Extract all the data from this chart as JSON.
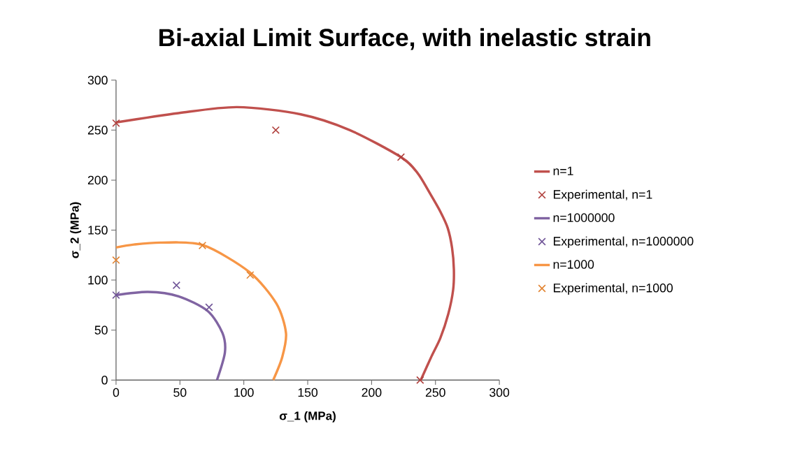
{
  "chart_data": {
    "type": "scatter",
    "title": "Bi-axial Limit Surface, with inelastic strain",
    "xlabel": "σ_1   (MPa)",
    "ylabel": "σ_2  (MPa)",
    "xlim": [
      0,
      300
    ],
    "ylim": [
      0,
      300
    ],
    "xticks": [
      0,
      50,
      100,
      150,
      200,
      250,
      300
    ],
    "yticks": [
      0,
      50,
      100,
      150,
      200,
      250,
      300
    ],
    "legend": "right",
    "series": [
      {
        "name": "n=1",
        "type": "line",
        "color": "#c0504d",
        "x": [
          0,
          48.9,
          94.8,
          144.6,
          183,
          223,
          236,
          246,
          254,
          259.6,
          263,
          264.4,
          263.8,
          260,
          253.8,
          247,
          238.5
        ],
        "values": [
          257.7,
          267,
          273,
          265.8,
          250,
          223,
          207,
          186,
          168,
          152,
          132,
          110.6,
          90,
          66,
          42,
          24,
          0
        ]
      },
      {
        "name": "Experimental, n=1",
        "marker": "cross",
        "color": "#b0403d",
        "x": [
          0,
          125,
          223,
          238
        ],
        "values": [
          257,
          250,
          223,
          0
        ]
      },
      {
        "name": "n=1000000",
        "type": "line",
        "color": "#8064a2",
        "x": [
          0,
          25,
          48.9,
          71.8,
          83.3,
          85.2,
          79
        ],
        "values": [
          85,
          88.2,
          83.8,
          69,
          47,
          27.6,
          0
        ]
      },
      {
        "name": "Experimental, n=1000000",
        "marker": "cross",
        "color": "#6f5497",
        "x": [
          0,
          47.3,
          72.8
        ],
        "values": [
          85,
          94.8,
          72.8
        ]
      },
      {
        "name": "n=1000",
        "type": "line",
        "color": "#f79646",
        "x": [
          0,
          14,
          35.4,
          68,
          104.4,
          125.5,
          133,
          130,
          123
        ],
        "values": [
          132.6,
          135.6,
          137.5,
          135,
          108,
          76.5,
          47,
          22.7,
          0
        ]
      },
      {
        "name": "Experimental, n=1000",
        "marker": "cross",
        "color": "#e2822f",
        "x": [
          0,
          67.6,
          105
        ],
        "values": [
          120,
          134.6,
          105
        ]
      }
    ]
  }
}
